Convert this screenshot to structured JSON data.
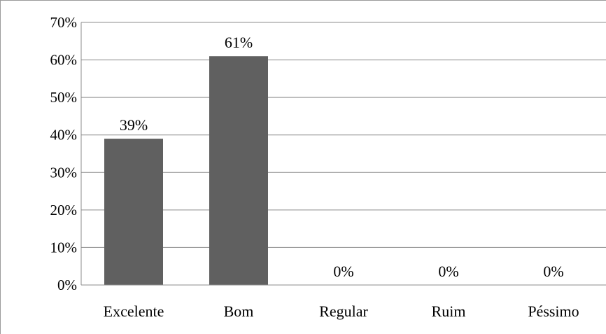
{
  "chart_data": {
    "type": "bar",
    "categories": [
      "Excelente",
      "Bom",
      "Regular",
      "Ruim",
      "Péssimo"
    ],
    "values": [
      39,
      61,
      0,
      0,
      0
    ],
    "data_labels": [
      "39%",
      "61%",
      "0%",
      "0%",
      "0%"
    ],
    "ylim": [
      0,
      70
    ],
    "yticks": [
      0,
      10,
      20,
      30,
      40,
      50,
      60,
      70
    ],
    "ytick_labels": [
      "0%",
      "10%",
      "20%",
      "30%",
      "40%",
      "50%",
      "60%",
      "70%"
    ],
    "grid": true,
    "legend": "none",
    "bar_color": "#606060",
    "grid_color": "#8c8c8c"
  }
}
